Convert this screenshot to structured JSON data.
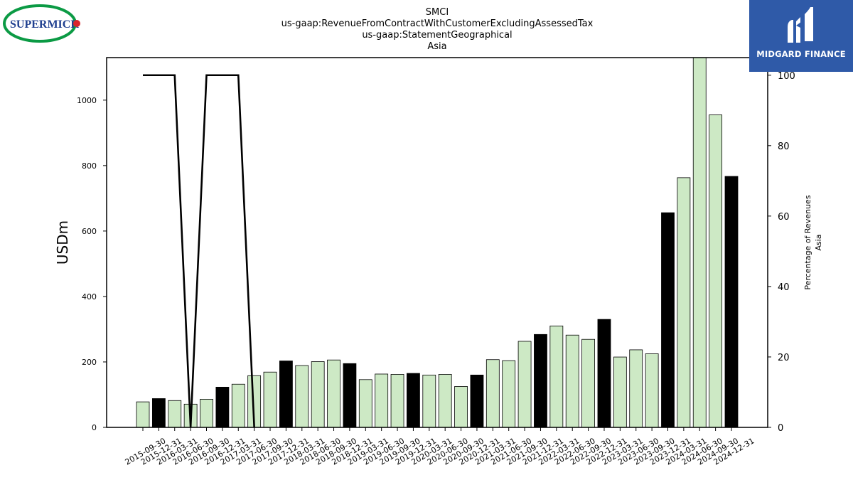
{
  "logos": {
    "left_text": "SUPERMICR",
    "right_text": "MIDGARD FINANCE"
  },
  "chart_data": {
    "type": "bar",
    "title_lines": [
      "SMCI",
      "us-gaap:RevenueFromContractWithCustomerExcludingAssessedTax",
      "us-gaap:StatementGeographical",
      "Asia"
    ],
    "ylabel": "USDm",
    "ylabel_right": [
      "Percentage of Revenues",
      "Asia"
    ],
    "ylim": [
      0,
      1130
    ],
    "ylim_right": [
      0,
      105
    ],
    "yticks": [
      0,
      200,
      400,
      600,
      800,
      1000
    ],
    "yticks_right": [
      0,
      20,
      40,
      60,
      80,
      100
    ],
    "grid": false,
    "colors": {
      "bar_light": "#cde9c5",
      "bar_dark": "#000000",
      "line": "#000000"
    },
    "categories": [
      "2015-09-30",
      "2015-12-31",
      "2016-03-31",
      "2016-06-30",
      "2016-09-30",
      "2016-12-31",
      "2017-03-31",
      "2017-06-30",
      "2017-09-30",
      "2017-12-31",
      "2018-03-31",
      "2018-06-30",
      "2018-09-30",
      "2018-12-31",
      "2019-03-31",
      "2019-06-30",
      "2019-09-30",
      "2019-12-31",
      "2020-03-31",
      "2020-06-30",
      "2020-09-30",
      "2020-12-31",
      "2021-03-31",
      "2021-06-30",
      "2021-09-30",
      "2021-12-31",
      "2022-03-31",
      "2022-06-30",
      "2022-09-30",
      "2022-12-31",
      "2023-03-31",
      "2023-06-30",
      "2023-09-30",
      "2023-12-31",
      "2024-03-31",
      "2024-06-30",
      "2024-09-30",
      "2024-12-31"
    ],
    "values": [
      78,
      88,
      82,
      71,
      86,
      123,
      132,
      158,
      169,
      203,
      189,
      201,
      206,
      195,
      146,
      163,
      162,
      165,
      160,
      162,
      125,
      160,
      207,
      204,
      263,
      284,
      310,
      282,
      269,
      330,
      215,
      237,
      225,
      656,
      763,
      1130,
      955,
      767
    ],
    "highlight": [
      false,
      true,
      false,
      false,
      false,
      true,
      false,
      false,
      false,
      true,
      false,
      false,
      false,
      true,
      false,
      false,
      false,
      true,
      false,
      false,
      false,
      true,
      false,
      false,
      false,
      true,
      false,
      false,
      false,
      true,
      false,
      false,
      false,
      true,
      false,
      false,
      false,
      true
    ],
    "percentage_series": {
      "values": [
        100,
        100,
        100,
        0,
        100,
        100,
        100,
        0
      ]
    }
  }
}
